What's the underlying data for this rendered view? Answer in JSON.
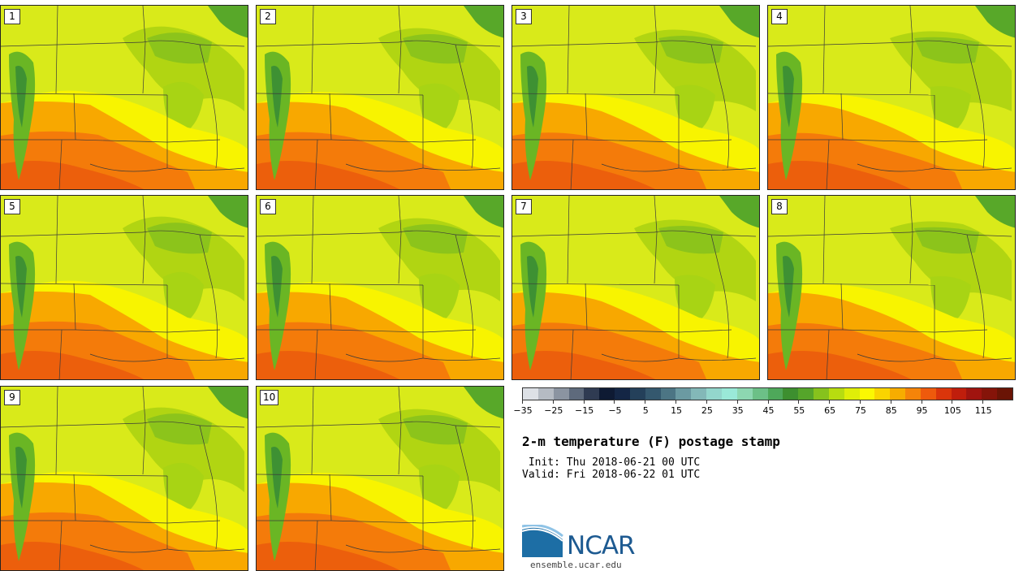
{
  "figure": {
    "title": "2-m temperature (F) postage stamp",
    "init": " Init: Thu 2018-06-21 00 UTC",
    "valid": "Valid: Fri 2018-06-22 01 UTC"
  },
  "panels": [
    {
      "label": "1"
    },
    {
      "label": "2"
    },
    {
      "label": "3"
    },
    {
      "label": "4"
    },
    {
      "label": "5"
    },
    {
      "label": "6"
    },
    {
      "label": "7"
    },
    {
      "label": "8"
    },
    {
      "label": "9"
    },
    {
      "label": "10"
    }
  ],
  "colorbar": {
    "unit": "F",
    "ticks": [
      "-35",
      "-25",
      "-15",
      "-5",
      "5",
      "15",
      "25",
      "35",
      "45",
      "55",
      "65",
      "75",
      "85",
      "95",
      "105",
      "115"
    ],
    "colors": [
      "#dde1e6",
      "#b5bbc3",
      "#8b94a1",
      "#5e6a7c",
      "#2f3b52",
      "#0e1a33",
      "#142645",
      "#24405a",
      "#34586e",
      "#4c7584",
      "#6b9aa2",
      "#83b8b8",
      "#93d6cc",
      "#9ae9d8",
      "#8dd7b1",
      "#6cc087",
      "#4ea85a",
      "#3d8f2f",
      "#55a52a",
      "#86c21d",
      "#b7dc10",
      "#dfee08",
      "#fbf802",
      "#f9d400",
      "#f7ad00",
      "#f58409",
      "#ee5a0c",
      "#da350b",
      "#c01e0c",
      "#a0140f",
      "#851409",
      "#6a1405"
    ]
  },
  "logo": {
    "text": "NCAR",
    "site": "ensemble.ucar.edu"
  }
}
